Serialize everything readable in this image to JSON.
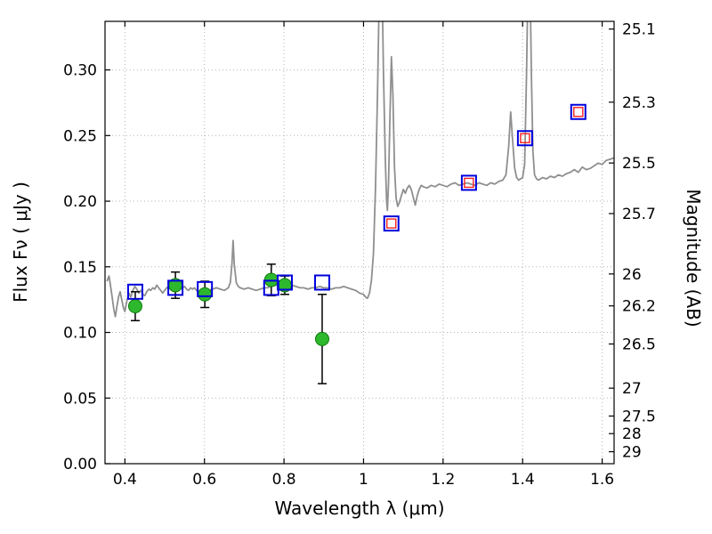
{
  "figure": {
    "background": "#ffffff",
    "frame_color": "#000000"
  },
  "chart_data": {
    "type": "line",
    "title": "",
    "xlabel": "Wavelength λ (μm)",
    "ylabel_left": "Flux Fν ( μJy )",
    "ylabel_right": "Magnitude (AB)",
    "xlim": [
      0.35,
      1.63
    ],
    "ylim": [
      0.0,
      0.337
    ],
    "ab_zeropoint_ujy": 23.9,
    "grid": {
      "show": true,
      "style": "dotted",
      "color": "#b3b3b3"
    },
    "x_ticks": [
      {
        "label": "0.4",
        "value": 0.4
      },
      {
        "label": "0.6",
        "value": 0.6
      },
      {
        "label": "0.8",
        "value": 0.8
      },
      {
        "label": "1",
        "value": 1.0
      },
      {
        "label": "1.2",
        "value": 1.2
      },
      {
        "label": "1.4",
        "value": 1.4
      },
      {
        "label": "1.6",
        "value": 1.6
      }
    ],
    "y_ticks_left": [
      {
        "label": "0.00",
        "value": 0.0
      },
      {
        "label": "0.05",
        "value": 0.05
      },
      {
        "label": "0.10",
        "value": 0.1
      },
      {
        "label": "0.15",
        "value": 0.15
      },
      {
        "label": "0.20",
        "value": 0.2
      },
      {
        "label": "0.25",
        "value": 0.25
      },
      {
        "label": "0.30",
        "value": 0.3
      }
    ],
    "y_ticks_right": [
      {
        "label": "25.1",
        "mag": 25.1
      },
      {
        "label": "25.3",
        "mag": 25.3
      },
      {
        "label": "25.5",
        "mag": 25.5
      },
      {
        "label": "25.7",
        "mag": 25.7
      },
      {
        "label": "26",
        "mag": 26.0
      },
      {
        "label": "26.2",
        "mag": 26.2
      },
      {
        "label": "26.5",
        "mag": 26.5
      },
      {
        "label": "27",
        "mag": 27.0
      },
      {
        "label": "27.5",
        "mag": 27.5
      },
      {
        "label": "28",
        "mag": 28.0
      },
      {
        "label": "29",
        "mag": 29.0
      }
    ],
    "series": [
      {
        "name": "galaxy-spectrum",
        "type": "line",
        "color": "#8f8f8f",
        "width": 1.8,
        "points": [
          [
            0.355,
            0.139
          ],
          [
            0.36,
            0.143
          ],
          [
            0.364,
            0.135
          ],
          [
            0.368,
            0.127
          ],
          [
            0.372,
            0.118
          ],
          [
            0.376,
            0.112
          ],
          [
            0.38,
            0.12
          ],
          [
            0.384,
            0.127
          ],
          [
            0.388,
            0.131
          ],
          [
            0.392,
            0.125
          ],
          [
            0.396,
            0.119
          ],
          [
            0.4,
            0.116
          ],
          [
            0.405,
            0.124
          ],
          [
            0.41,
            0.13
          ],
          [
            0.415,
            0.127
          ],
          [
            0.42,
            0.132
          ],
          [
            0.425,
            0.135
          ],
          [
            0.43,
            0.133
          ],
          [
            0.435,
            0.13
          ],
          [
            0.44,
            0.132
          ],
          [
            0.445,
            0.129
          ],
          [
            0.45,
            0.128
          ],
          [
            0.455,
            0.131
          ],
          [
            0.46,
            0.133
          ],
          [
            0.465,
            0.132
          ],
          [
            0.47,
            0.134
          ],
          [
            0.475,
            0.133
          ],
          [
            0.48,
            0.136
          ],
          [
            0.485,
            0.134
          ],
          [
            0.49,
            0.132
          ],
          [
            0.495,
            0.13
          ],
          [
            0.5,
            0.132
          ],
          [
            0.505,
            0.134
          ],
          [
            0.51,
            0.135
          ],
          [
            0.515,
            0.133
          ],
          [
            0.52,
            0.134
          ],
          [
            0.525,
            0.136
          ],
          [
            0.53,
            0.137
          ],
          [
            0.535,
            0.138
          ],
          [
            0.54,
            0.136
          ],
          [
            0.545,
            0.134
          ],
          [
            0.55,
            0.135
          ],
          [
            0.555,
            0.133
          ],
          [
            0.56,
            0.132
          ],
          [
            0.565,
            0.134
          ],
          [
            0.57,
            0.133
          ],
          [
            0.575,
            0.134
          ],
          [
            0.58,
            0.132
          ],
          [
            0.585,
            0.131
          ],
          [
            0.59,
            0.13
          ],
          [
            0.595,
            0.132
          ],
          [
            0.6,
            0.133
          ],
          [
            0.61,
            0.132
          ],
          [
            0.62,
            0.133
          ],
          [
            0.63,
            0.134
          ],
          [
            0.64,
            0.133
          ],
          [
            0.65,
            0.132
          ],
          [
            0.66,
            0.134
          ],
          [
            0.665,
            0.138
          ],
          [
            0.669,
            0.152
          ],
          [
            0.672,
            0.17
          ],
          [
            0.675,
            0.152
          ],
          [
            0.68,
            0.138
          ],
          [
            0.685,
            0.135
          ],
          [
            0.69,
            0.134
          ],
          [
            0.7,
            0.133
          ],
          [
            0.71,
            0.134
          ],
          [
            0.72,
            0.133
          ],
          [
            0.73,
            0.132
          ],
          [
            0.74,
            0.133
          ],
          [
            0.75,
            0.134
          ],
          [
            0.76,
            0.134
          ],
          [
            0.77,
            0.136
          ],
          [
            0.78,
            0.136
          ],
          [
            0.79,
            0.135
          ],
          [
            0.8,
            0.136
          ],
          [
            0.81,
            0.136
          ],
          [
            0.82,
            0.136
          ],
          [
            0.83,
            0.135
          ],
          [
            0.84,
            0.134
          ],
          [
            0.85,
            0.134
          ],
          [
            0.86,
            0.133
          ],
          [
            0.87,
            0.134
          ],
          [
            0.88,
            0.134
          ],
          [
            0.89,
            0.135
          ],
          [
            0.9,
            0.134
          ],
          [
            0.91,
            0.134
          ],
          [
            0.92,
            0.133
          ],
          [
            0.93,
            0.134
          ],
          [
            0.94,
            0.134
          ],
          [
            0.95,
            0.135
          ],
          [
            0.96,
            0.134
          ],
          [
            0.97,
            0.133
          ],
          [
            0.98,
            0.132
          ],
          [
            0.99,
            0.13
          ],
          [
            1.0,
            0.129
          ],
          [
            1.005,
            0.127
          ],
          [
            1.01,
            0.126
          ],
          [
            1.015,
            0.13
          ],
          [
            1.02,
            0.14
          ],
          [
            1.025,
            0.16
          ],
          [
            1.03,
            0.21
          ],
          [
            1.035,
            0.28
          ],
          [
            1.04,
            0.365
          ],
          [
            1.046,
            0.38
          ],
          [
            1.05,
            0.3
          ],
          [
            1.055,
            0.23
          ],
          [
            1.058,
            0.2
          ],
          [
            1.06,
            0.193
          ],
          [
            1.063,
            0.215
          ],
          [
            1.066,
            0.26
          ],
          [
            1.07,
            0.31
          ],
          [
            1.074,
            0.28
          ],
          [
            1.078,
            0.225
          ],
          [
            1.082,
            0.202
          ],
          [
            1.086,
            0.196
          ],
          [
            1.09,
            0.199
          ],
          [
            1.095,
            0.204
          ],
          [
            1.1,
            0.209
          ],
          [
            1.105,
            0.206
          ],
          [
            1.11,
            0.21
          ],
          [
            1.115,
            0.212
          ],
          [
            1.12,
            0.209
          ],
          [
            1.125,
            0.203
          ],
          [
            1.13,
            0.197
          ],
          [
            1.135,
            0.204
          ],
          [
            1.14,
            0.209
          ],
          [
            1.145,
            0.212
          ],
          [
            1.15,
            0.211
          ],
          [
            1.16,
            0.21
          ],
          [
            1.17,
            0.212
          ],
          [
            1.18,
            0.211
          ],
          [
            1.19,
            0.213
          ],
          [
            1.2,
            0.212
          ],
          [
            1.21,
            0.211
          ],
          [
            1.22,
            0.213
          ],
          [
            1.23,
            0.214
          ],
          [
            1.24,
            0.212
          ],
          [
            1.25,
            0.213
          ],
          [
            1.26,
            0.214
          ],
          [
            1.27,
            0.213
          ],
          [
            1.28,
            0.212
          ],
          [
            1.29,
            0.214
          ],
          [
            1.3,
            0.213
          ],
          [
            1.31,
            0.212
          ],
          [
            1.32,
            0.214
          ],
          [
            1.33,
            0.213
          ],
          [
            1.34,
            0.215
          ],
          [
            1.35,
            0.216
          ],
          [
            1.358,
            0.22
          ],
          [
            1.365,
            0.242
          ],
          [
            1.37,
            0.268
          ],
          [
            1.375,
            0.246
          ],
          [
            1.38,
            0.225
          ],
          [
            1.385,
            0.218
          ],
          [
            1.39,
            0.216
          ],
          [
            1.395,
            0.217
          ],
          [
            1.4,
            0.218
          ],
          [
            1.405,
            0.228
          ],
          [
            1.41,
            0.3
          ],
          [
            1.414,
            0.38
          ],
          [
            1.418,
            0.38
          ],
          [
            1.422,
            0.295
          ],
          [
            1.426,
            0.238
          ],
          [
            1.43,
            0.22
          ],
          [
            1.435,
            0.217
          ],
          [
            1.44,
            0.216
          ],
          [
            1.45,
            0.218
          ],
          [
            1.46,
            0.217
          ],
          [
            1.47,
            0.219
          ],
          [
            1.48,
            0.218
          ],
          [
            1.49,
            0.22
          ],
          [
            1.5,
            0.219
          ],
          [
            1.51,
            0.221
          ],
          [
            1.52,
            0.222
          ],
          [
            1.53,
            0.224
          ],
          [
            1.54,
            0.222
          ],
          [
            1.55,
            0.226
          ],
          [
            1.56,
            0.224
          ],
          [
            1.57,
            0.225
          ],
          [
            1.58,
            0.227
          ],
          [
            1.59,
            0.229
          ],
          [
            1.6,
            0.228
          ],
          [
            1.61,
            0.231
          ],
          [
            1.62,
            0.232
          ],
          [
            1.63,
            0.233
          ]
        ]
      },
      {
        "name": "observed-photometry",
        "type": "scatter",
        "marker": "circle",
        "fill": "#2eb82e",
        "edge": "#0d7a0d",
        "size": 7.5,
        "error_color": "#000000",
        "points": [
          {
            "x": 0.426,
            "y": 0.12,
            "yerr": 0.011
          },
          {
            "x": 0.527,
            "y": 0.136,
            "yerr": 0.01
          },
          {
            "x": 0.601,
            "y": 0.129,
            "yerr": 0.01
          },
          {
            "x": 0.768,
            "y": 0.14,
            "yerr": 0.012
          },
          {
            "x": 0.802,
            "y": 0.136,
            "yerr": 0.007
          },
          {
            "x": 0.896,
            "y": 0.095,
            "yerr": 0.034
          }
        ]
      },
      {
        "name": "model-photometry",
        "type": "scatter",
        "marker": "square-open",
        "color": "#0000dd",
        "size": 16,
        "stroke_width": 2,
        "points": [
          {
            "x": 0.426,
            "y": 0.131
          },
          {
            "x": 0.527,
            "y": 0.134
          },
          {
            "x": 0.601,
            "y": 0.133
          },
          {
            "x": 0.768,
            "y": 0.134
          },
          {
            "x": 0.802,
            "y": 0.138
          },
          {
            "x": 0.896,
            "y": 0.138
          },
          {
            "x": 1.07,
            "y": 0.183
          },
          {
            "x": 1.265,
            "y": 0.214
          },
          {
            "x": 1.406,
            "y": 0.248
          },
          {
            "x": 1.54,
            "y": 0.268
          }
        ]
      },
      {
        "name": "model-photometry-inner",
        "type": "scatter",
        "marker": "square-open",
        "color": "#ff2020",
        "size": 10,
        "stroke_width": 1.4,
        "points": [
          {
            "x": 1.07,
            "y": 0.183
          },
          {
            "x": 1.265,
            "y": 0.214
          },
          {
            "x": 1.406,
            "y": 0.248
          },
          {
            "x": 1.54,
            "y": 0.268
          }
        ]
      }
    ]
  }
}
